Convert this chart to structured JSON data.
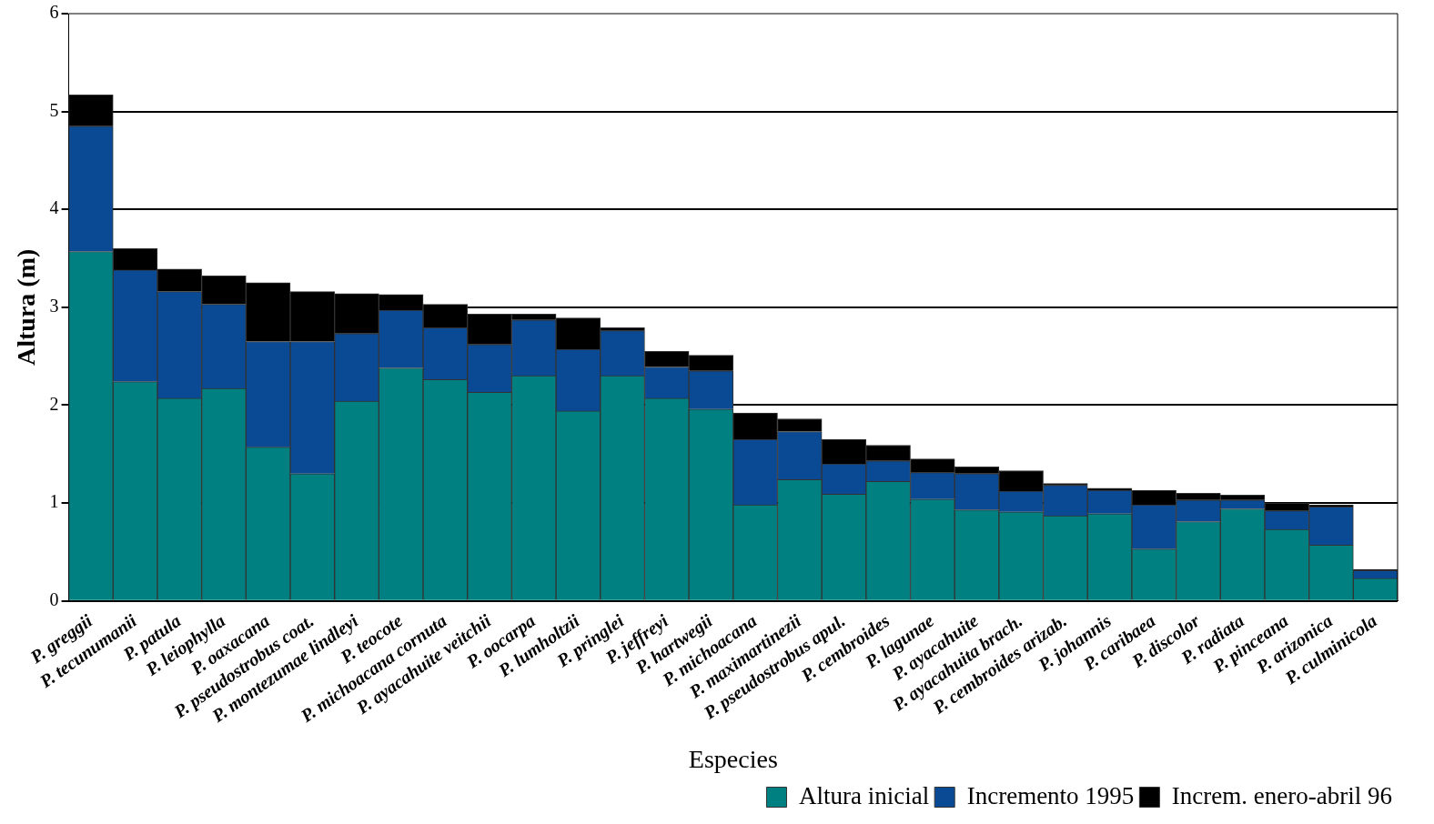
{
  "chart_data": {
    "type": "bar",
    "stacked": true,
    "xlabel": "Especies",
    "ylabel": "Altura (m)",
    "categories": [
      "P. greggii",
      "P. tecunumanii",
      "P. patula",
      "P. leiophylla",
      "P. oaxacana",
      "P. pseudostrobus coat.",
      "P. montezumae lindleyi",
      "P. teocote",
      "P. michoacana cornuta",
      "P. ayacahuite veitchii",
      "P. oocarpa",
      "P. lumholtzii",
      "P. pringlei",
      "P. jeffreyi",
      "P. hartwegii",
      "P. michoacana",
      "P. maximartinezii",
      "P. pseudostrobus apul.",
      "P. cembroides",
      "P. lagunae",
      "P. ayacahuite",
      "P. ayacahuita brach.",
      "P. cembroides arizab.",
      "P. johannis",
      "P. caribaea",
      "P. discolor",
      "P. radiata",
      "P. pinceana",
      "P. arizonica",
      "P. culminicola"
    ],
    "series": [
      {
        "name": "Altura inicial",
        "color": "#008080",
        "values": [
          3.57,
          2.24,
          2.07,
          2.17,
          1.57,
          1.3,
          2.04,
          2.38,
          2.26,
          2.13,
          2.3,
          1.94,
          2.3,
          2.07,
          1.96,
          0.98,
          1.24,
          1.09,
          1.22,
          1.04,
          0.93,
          0.91,
          0.87,
          0.89,
          0.53,
          0.81,
          0.94,
          0.73,
          0.57,
          0.23
        ]
      },
      {
        "name": "Incremento 1995",
        "color": "#0a4a94",
        "values": [
          1.28,
          1.14,
          1.09,
          0.86,
          1.08,
          1.35,
          0.69,
          0.59,
          0.53,
          0.49,
          0.57,
          0.63,
          0.46,
          0.32,
          0.39,
          0.67,
          0.49,
          0.31,
          0.21,
          0.27,
          0.37,
          0.21,
          0.31,
          0.24,
          0.45,
          0.22,
          0.09,
          0.19,
          0.39,
          0.08
        ]
      },
      {
        "name": "Increm. enero-abril 96",
        "color": "#000000",
        "values": [
          0.32,
          0.22,
          0.23,
          0.29,
          0.6,
          0.51,
          0.41,
          0.16,
          0.24,
          0.31,
          0.06,
          0.32,
          0.03,
          0.16,
          0.16,
          0.27,
          0.13,
          0.25,
          0.16,
          0.14,
          0.07,
          0.21,
          0.02,
          0.02,
          0.15,
          0.07,
          0.05,
          0.08,
          0.02,
          0.01
        ]
      }
    ],
    "ylim": [
      0,
      6
    ],
    "yticks": [
      0,
      1,
      2,
      3,
      4,
      5,
      6
    ],
    "grid": "y",
    "legend": "bottom right"
  }
}
